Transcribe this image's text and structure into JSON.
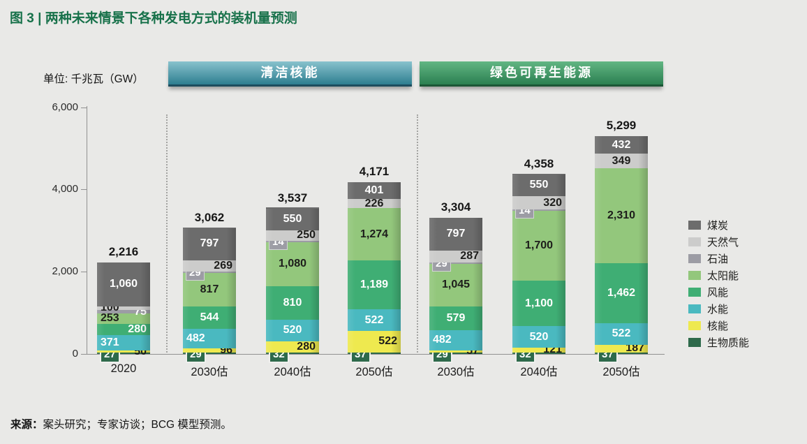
{
  "title": "图 3 | 两种未来情景下各种发电方式的装机量预测",
  "unit_label": "单位: 千兆瓦（GW）",
  "scenarios": [
    {
      "label": "清洁核能"
    },
    {
      "label": "绿色可再生能源"
    }
  ],
  "source": {
    "prefix": "来源：",
    "text": "案头研究；专家访谈；BCG 模型预测。"
  },
  "colors": {
    "background": "#e9e9e7",
    "title_green": "#17714a",
    "banner_clean_top": "#88c2cd",
    "banner_clean_bottom": "#2e7e90",
    "banner_clean_edge": "#1e4d5e",
    "banner_green_top": "#62b683",
    "banner_green_bottom": "#2b7f51",
    "banner_green_edge": "#1c5636",
    "axis_gray": "#909090"
  },
  "chart_data": {
    "type": "bar",
    "stacked": true,
    "title": "两种未来情景下各种发电方式的装机量预测",
    "ylabel": "千兆瓦（GW）",
    "ylim": [
      0,
      6000
    ],
    "grid": false,
    "legend_position": "right",
    "yticks": [
      {
        "value": 0,
        "label": "0"
      },
      {
        "value": 2000,
        "label": "2,000"
      },
      {
        "value": 4000,
        "label": "4,000"
      },
      {
        "value": 6000,
        "label": "6,000"
      }
    ],
    "categories": [
      "2020",
      "2030估",
      "2040估",
      "2050估",
      "2030估",
      "2040估",
      "2050估"
    ],
    "category_scenarios": [
      "",
      "清洁核能",
      "清洁核能",
      "清洁核能",
      "绿色可再生能源",
      "绿色可再生能源",
      "绿色可再生能源"
    ],
    "totals": [
      "2,216",
      "3,062",
      "3,537",
      "4,171",
      "3,304",
      "4,358",
      "5,299"
    ],
    "series": [
      {
        "key": "coal",
        "name": "煤炭",
        "color": "#6c6c6c",
        "values": [
          1060,
          797,
          550,
          401,
          797,
          550,
          432
        ],
        "labels": [
          {
            "t": "1,060",
            "p": "in",
            "c": "light"
          },
          {
            "t": "797",
            "p": "in",
            "c": "light"
          },
          {
            "t": "550",
            "p": "in",
            "c": "light"
          },
          {
            "t": "401",
            "p": "in",
            "c": "light"
          },
          {
            "t": "797",
            "p": "in",
            "c": "light"
          },
          {
            "t": "550",
            "p": "in",
            "c": "light"
          },
          {
            "t": "432",
            "p": "in",
            "c": "light"
          }
        ]
      },
      {
        "key": "gas",
        "name": "天然气",
        "color": "#cccccb",
        "values": [
          100,
          269,
          250,
          226,
          287,
          320,
          349
        ],
        "labels": [
          {
            "t": "100",
            "p": "left",
            "c": "dark"
          },
          {
            "t": "269",
            "p": "right",
            "c": "dark"
          },
          {
            "t": "250",
            "p": "right",
            "c": "dark"
          },
          {
            "t": "226",
            "p": "in",
            "c": "dark"
          },
          {
            "t": "287",
            "p": "right",
            "c": "dark"
          },
          {
            "t": "320",
            "p": "right",
            "c": "dark"
          },
          {
            "t": "349",
            "p": "in",
            "c": "dark"
          }
        ]
      },
      {
        "key": "oil",
        "name": "石油",
        "color": "#9c9ca4",
        "values": [
          75,
          29,
          14,
          0,
          29,
          14,
          0
        ],
        "labels": [
          {
            "t": "75",
            "p": "right",
            "c": "light"
          },
          {
            "t": "29",
            "p": "box",
            "c": "light"
          },
          {
            "t": "14",
            "p": "box",
            "c": "light"
          },
          null,
          {
            "t": "29",
            "p": "box",
            "c": "light"
          },
          {
            "t": "14",
            "p": "box",
            "c": "light"
          },
          null
        ]
      },
      {
        "key": "solar",
        "name": "太阳能",
        "color": "#93c77c",
        "values": [
          253,
          817,
          1080,
          1274,
          1045,
          1700,
          2310
        ],
        "labels": [
          {
            "t": "253",
            "p": "left",
            "c": "dark"
          },
          {
            "t": "817",
            "p": "in",
            "c": "dark"
          },
          {
            "t": "1,080",
            "p": "in",
            "c": "dark"
          },
          {
            "t": "1,274",
            "p": "in",
            "c": "dark"
          },
          {
            "t": "1,045",
            "p": "in",
            "c": "dark"
          },
          {
            "t": "1,700",
            "p": "in",
            "c": "dark"
          },
          {
            "t": "2,310",
            "p": "in",
            "c": "dark"
          }
        ]
      },
      {
        "key": "wind",
        "name": "风能",
        "color": "#3fae74",
        "values": [
          280,
          544,
          810,
          1189,
          579,
          1100,
          1462
        ],
        "labels": [
          {
            "t": "280",
            "p": "right",
            "c": "light"
          },
          {
            "t": "544",
            "p": "in",
            "c": "light"
          },
          {
            "t": "810",
            "p": "in",
            "c": "light"
          },
          {
            "t": "1,189",
            "p": "in",
            "c": "light"
          },
          {
            "t": "579",
            "p": "in",
            "c": "light"
          },
          {
            "t": "1,100",
            "p": "in",
            "c": "light"
          },
          {
            "t": "1,462",
            "p": "in",
            "c": "light"
          }
        ]
      },
      {
        "key": "hydro",
        "name": "水能",
        "color": "#4ab9c0",
        "values": [
          371,
          482,
          520,
          522,
          482,
          520,
          522
        ],
        "labels": [
          {
            "t": "371",
            "p": "left",
            "c": "light"
          },
          {
            "t": "482",
            "p": "left",
            "c": "light"
          },
          {
            "t": "520",
            "p": "in",
            "c": "light"
          },
          {
            "t": "522",
            "p": "in",
            "c": "light"
          },
          {
            "t": "482",
            "p": "left",
            "c": "light"
          },
          {
            "t": "520",
            "p": "in",
            "c": "light"
          },
          {
            "t": "522",
            "p": "in",
            "c": "light"
          }
        ]
      },
      {
        "key": "nuclear",
        "name": "核能",
        "color": "#eee94f",
        "values": [
          50,
          96,
          280,
          522,
          57,
          121,
          187
        ],
        "labels": [
          {
            "t": "50",
            "p": "right",
            "c": "dark"
          },
          {
            "t": "96",
            "p": "right",
            "c": "dark"
          },
          {
            "t": "280",
            "p": "right",
            "c": "dark"
          },
          {
            "t": "522",
            "p": "right",
            "c": "dark"
          },
          {
            "t": "57",
            "p": "right",
            "c": "dark"
          },
          {
            "t": "121",
            "p": "right",
            "c": "dark"
          },
          {
            "t": "187",
            "p": "right",
            "c": "dark"
          }
        ]
      },
      {
        "key": "biomass",
        "name": "生物质能",
        "color": "#2e6a4b",
        "values": [
          27,
          29,
          32,
          37,
          29,
          32,
          37
        ],
        "labels": [
          {
            "t": "27",
            "p": "box",
            "c": "light"
          },
          {
            "t": "29",
            "p": "box",
            "c": "light"
          },
          {
            "t": "32",
            "p": "box",
            "c": "light"
          },
          {
            "t": "37",
            "p": "box",
            "c": "light"
          },
          {
            "t": "29",
            "p": "box",
            "c": "light"
          },
          {
            "t": "32",
            "p": "box",
            "c": "light"
          },
          {
            "t": "37",
            "p": "box",
            "c": "light"
          }
        ]
      }
    ]
  }
}
